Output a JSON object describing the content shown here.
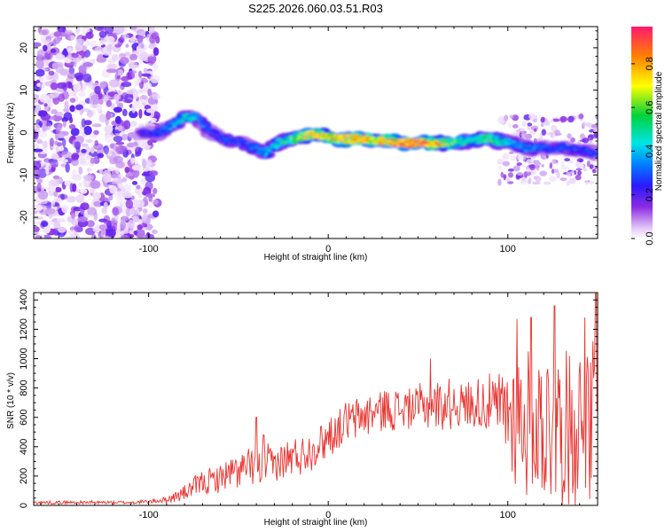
{
  "title": "S225.2026.060.03.51.R03",
  "colors": {
    "snr_line": "#e8332e",
    "axis": "#000000"
  },
  "chart_data": [
    {
      "type": "heatmap",
      "title": "S225.2026.060.03.51.R03",
      "xlabel": "Height of straight line (km)",
      "ylabel": "Frequency (Hz)",
      "xlim": [
        -164,
        150
      ],
      "ylim": [
        -25,
        25
      ],
      "x_ticks": [
        -100,
        0,
        100
      ],
      "x_tick_labels": [
        "-100",
        "0",
        "100"
      ],
      "y_ticks": [
        -20,
        -10,
        0,
        10,
        20
      ],
      "y_tick_labels": [
        "-20",
        "-10",
        "0",
        "10",
        "20"
      ],
      "colorbar": {
        "label": "Normalized spectral amplitude",
        "range": [
          0,
          0.97
        ],
        "ticks": [
          0.0,
          0.2,
          0.4,
          0.6,
          0.8
        ],
        "tick_labels": [
          "0.0",
          "0.2",
          "0.4",
          "0.6",
          "0.8"
        ]
      },
      "ridge": {
        "x": [
          -100,
          -95,
          -90,
          -85,
          -80,
          -75,
          -70,
          -65,
          -60,
          -55,
          -50,
          -45,
          -40,
          -35,
          -30,
          -25,
          -20,
          -15,
          -10,
          -5,
          0,
          5,
          10,
          15,
          20,
          25,
          30,
          35,
          40,
          45,
          50,
          55,
          60,
          65,
          70,
          75,
          80,
          85,
          90,
          95,
          100,
          105,
          110,
          115,
          120,
          125,
          130,
          135,
          140,
          145,
          150
        ],
        "freq": [
          0,
          0,
          1,
          2,
          3.5,
          4,
          2,
          0,
          -1,
          -2,
          -2,
          -3,
          -4,
          -5,
          -3,
          -2,
          -1.5,
          -1,
          -0.5,
          -0.5,
          -1,
          -1.5,
          -1.5,
          -1.5,
          -1.5,
          -2,
          -2,
          -2,
          -2.5,
          -2.5,
          -2.5,
          -2.5,
          -2.5,
          -2.5,
          -2.5,
          -2,
          -2,
          -1.5,
          -1.5,
          -2,
          -2,
          -3,
          -3.5,
          -4,
          -3.5,
          -4,
          -3.5,
          -4,
          -4,
          -4.5,
          -5
        ],
        "amp": [
          0.25,
          0.3,
          0.35,
          0.4,
          0.5,
          0.45,
          0.35,
          0.3,
          0.3,
          0.3,
          0.3,
          0.3,
          0.35,
          0.4,
          0.45,
          0.55,
          0.6,
          0.7,
          0.8,
          0.85,
          0.75,
          0.8,
          0.85,
          0.9,
          0.85,
          0.75,
          0.85,
          0.9,
          0.95,
          0.95,
          0.95,
          0.9,
          0.85,
          0.7,
          0.6,
          0.55,
          0.5,
          0.55,
          0.6,
          0.55,
          0.45,
          0.4,
          0.35,
          0.35,
          0.3,
          0.3,
          0.3,
          0.3,
          0.3,
          0.3,
          0.3
        ]
      }
    },
    {
      "type": "line",
      "xlabel": "Height of straight line (km)",
      "ylabel": "SNR (10 * v/v)",
      "xlim": [
        -164,
        150
      ],
      "ylim": [
        0,
        1450
      ],
      "x_ticks": [
        -100,
        0,
        100
      ],
      "x_tick_labels": [
        "-100",
        "0",
        "100"
      ],
      "y_ticks": [
        0,
        200,
        400,
        600,
        800,
        1000,
        1200,
        1400
      ],
      "y_tick_labels": [
        "0",
        "200",
        "400",
        "600",
        "800",
        "1000",
        "1200",
        "1400"
      ],
      "series": [
        {
          "name": "SNR",
          "x": [
            -164,
            -150,
            -130,
            -110,
            -100,
            -90,
            -85,
            -80,
            -75,
            -70,
            -65,
            -60,
            -55,
            -50,
            -45,
            -40,
            -35,
            -30,
            -25,
            -20,
            -15,
            -10,
            -5,
            0,
            5,
            10,
            15,
            20,
            25,
            30,
            35,
            40,
            45,
            50,
            55,
            60,
            65,
            70,
            75,
            80,
            85,
            90,
            95,
            100,
            105,
            110,
            115,
            120,
            125,
            130,
            135,
            140,
            145,
            150
          ],
          "mean": [
            20,
            20,
            20,
            20,
            25,
            40,
            60,
            90,
            120,
            150,
            170,
            190,
            210,
            230,
            250,
            260,
            270,
            280,
            300,
            320,
            350,
            380,
            420,
            470,
            520,
            560,
            590,
            610,
            630,
            650,
            660,
            660,
            670,
            670,
            680,
            680,
            690,
            690,
            690,
            690,
            690,
            680,
            660,
            640,
            600,
            580,
            570,
            560,
            560,
            560,
            560,
            560,
            560,
            560
          ],
          "spread": [
            12,
            12,
            12,
            12,
            15,
            25,
            40,
            60,
            80,
            90,
            100,
            110,
            120,
            130,
            140,
            150,
            150,
            150,
            150,
            150,
            150,
            150,
            150,
            150,
            160,
            160,
            160,
            160,
            160,
            160,
            160,
            160,
            160,
            160,
            170,
            180,
            180,
            180,
            180,
            190,
            200,
            220,
            260,
            400,
            500,
            550,
            580,
            600,
            620,
            620,
            620,
            620,
            620,
            620
          ],
          "peaks": [
            {
              "x": -40,
              "y": 600
            },
            {
              "x": -36,
              "y": 480
            },
            {
              "x": 57,
              "y": 1000
            },
            {
              "x": 105,
              "y": 1270
            },
            {
              "x": 113,
              "y": 1280
            },
            {
              "x": 126,
              "y": 1360
            },
            {
              "x": 143,
              "y": 1280
            },
            {
              "x": 149,
              "y": 1450
            }
          ]
        }
      ]
    }
  ]
}
